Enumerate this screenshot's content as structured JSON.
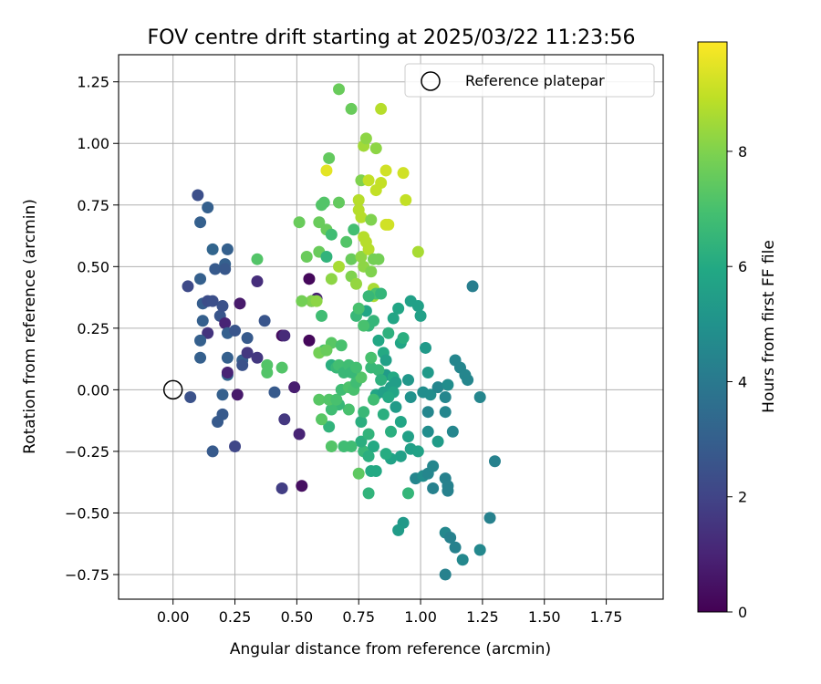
{
  "chart_data": {
    "type": "scatter",
    "title": "FOV centre drift starting at 2025/03/22 11:23:56",
    "xlabel": "Angular distance from reference (arcmin)",
    "ylabel": "Rotation from reference (arcmin)",
    "xlim": [
      -0.22,
      1.98
    ],
    "ylim": [
      -0.85,
      1.36
    ],
    "xticks": [
      "0.00",
      "0.25",
      "0.50",
      "0.75",
      "1.00",
      "1.25",
      "1.50",
      "1.75"
    ],
    "yticks": [
      "−0.75",
      "−0.50",
      "−0.25",
      "0.00",
      "0.25",
      "0.50",
      "0.75",
      "1.00",
      "1.25"
    ],
    "grid": true,
    "legend": {
      "position": "top-right",
      "entries": [
        "Reference platepar"
      ]
    },
    "reference": {
      "x": 0.0,
      "y": 0.0,
      "label": "Reference platepar"
    },
    "colorbar": {
      "label": "Hours from first FF file",
      "range": [
        0,
        9.9
      ],
      "ticks": [
        "0",
        "2",
        "4",
        "6",
        "8"
      ],
      "colormap": "viridis"
    },
    "points": [
      [
        0.1,
        0.79,
        2.4
      ],
      [
        0.14,
        0.74,
        3.0
      ],
      [
        0.11,
        0.68,
        3.0
      ],
      [
        0.16,
        0.57,
        3.2
      ],
      [
        0.22,
        0.57,
        3.0
      ],
      [
        0.17,
        0.49,
        2.8
      ],
      [
        0.21,
        0.51,
        3.0
      ],
      [
        0.21,
        0.49,
        2.7
      ],
      [
        0.11,
        0.45,
        3.0
      ],
      [
        0.06,
        0.42,
        2.2
      ],
      [
        0.12,
        0.35,
        2.9
      ],
      [
        0.14,
        0.36,
        2.3
      ],
      [
        0.16,
        0.36,
        2.4
      ],
      [
        0.19,
        0.3,
        2.6
      ],
      [
        0.2,
        0.34,
        2.5
      ],
      [
        0.12,
        0.28,
        3.0
      ],
      [
        0.14,
        0.23,
        1.5
      ],
      [
        0.11,
        0.2,
        3.0
      ],
      [
        0.21,
        0.27,
        1.0
      ],
      [
        0.22,
        0.23,
        3.0
      ],
      [
        0.25,
        0.24,
        2.6
      ],
      [
        0.27,
        0.35,
        0.7
      ],
      [
        0.34,
        0.44,
        1.3
      ],
      [
        0.37,
        0.28,
        2.6
      ],
      [
        0.11,
        0.13,
        3.0
      ],
      [
        0.22,
        0.13,
        3.0
      ],
      [
        0.28,
        0.12,
        3.0
      ],
      [
        0.3,
        0.15,
        1.6
      ],
      [
        0.34,
        0.13,
        1.6
      ],
      [
        0.3,
        0.21,
        2.8
      ],
      [
        0.22,
        0.06,
        3.2
      ],
      [
        0.22,
        0.07,
        1.0
      ],
      [
        0.28,
        0.1,
        2.5
      ],
      [
        0.07,
        -0.03,
        2.5
      ],
      [
        0.2,
        -0.02,
        3.0
      ],
      [
        0.26,
        -0.02,
        0.7
      ],
      [
        0.41,
        -0.01,
        2.8
      ],
      [
        0.49,
        0.01,
        0.8
      ],
      [
        0.2,
        -0.1,
        2.8
      ],
      [
        0.18,
        -0.13,
        2.8
      ],
      [
        0.16,
        -0.25,
        2.8
      ],
      [
        0.25,
        -0.23,
        2.1
      ],
      [
        0.45,
        -0.12,
        1.6
      ],
      [
        0.51,
        -0.18,
        1.0
      ],
      [
        0.44,
        -0.4,
        1.8
      ],
      [
        0.52,
        -0.39,
        0.4
      ],
      [
        0.44,
        0.22,
        0.4
      ],
      [
        0.45,
        0.22,
        1.2
      ],
      [
        0.55,
        0.2,
        0.2
      ],
      [
        0.55,
        0.45,
        0.2
      ],
      [
        0.56,
        0.36,
        0.2
      ],
      [
        0.58,
        0.37,
        0.9
      ],
      [
        0.34,
        0.53,
        7.2
      ],
      [
        0.38,
        0.07,
        7.2
      ],
      [
        0.38,
        0.1,
        7.2
      ],
      [
        0.44,
        0.09,
        7.2
      ],
      [
        0.51,
        0.68,
        7.6
      ],
      [
        0.54,
        0.54,
        7.6
      ],
      [
        0.59,
        0.68,
        7.6
      ],
      [
        0.59,
        0.56,
        7.6
      ],
      [
        0.6,
        0.75,
        7.2
      ],
      [
        0.61,
        0.76,
        7.2
      ],
      [
        0.63,
        0.94,
        7.5
      ],
      [
        0.67,
        0.76,
        7.5
      ],
      [
        0.67,
        1.22,
        7.6
      ],
      [
        0.72,
        1.14,
        7.6
      ],
      [
        0.62,
        0.65,
        7.6
      ],
      [
        0.64,
        0.63,
        6.8
      ],
      [
        0.64,
        0.45,
        8.2
      ],
      [
        0.67,
        0.5,
        8.6
      ],
      [
        0.7,
        0.6,
        7.2
      ],
      [
        0.72,
        0.53,
        7.6
      ],
      [
        0.72,
        0.46,
        8.0
      ],
      [
        0.73,
        0.65,
        6.9
      ],
      [
        0.74,
        0.43,
        8.3
      ],
      [
        0.75,
        0.77,
        8.8
      ],
      [
        0.75,
        0.73,
        8.8
      ],
      [
        0.76,
        0.7,
        8.8
      ],
      [
        0.76,
        0.85,
        8.0
      ],
      [
        0.76,
        0.54,
        8.2
      ],
      [
        0.77,
        0.5,
        8.2
      ],
      [
        0.77,
        0.62,
        8.8
      ],
      [
        0.78,
        0.6,
        8.8
      ],
      [
        0.79,
        0.57,
        8.8
      ],
      [
        0.77,
        0.99,
        8.5
      ],
      [
        0.78,
        1.02,
        8.2
      ],
      [
        0.82,
        0.98,
        8.2
      ],
      [
        0.79,
        0.85,
        9.0
      ],
      [
        0.82,
        0.81,
        9.0
      ],
      [
        0.84,
        0.84,
        9.0
      ],
      [
        0.8,
        0.69,
        8.0
      ],
      [
        0.81,
        0.53,
        7.8
      ],
      [
        0.83,
        0.53,
        7.8
      ],
      [
        0.8,
        0.48,
        8.0
      ],
      [
        0.81,
        0.41,
        8.6
      ],
      [
        0.81,
        0.38,
        8.6
      ],
      [
        0.82,
        0.39,
        7.0
      ],
      [
        0.79,
        0.38,
        6.6
      ],
      [
        0.84,
        0.39,
        6.5
      ],
      [
        0.84,
        1.14,
        8.8
      ],
      [
        0.86,
        0.89,
        9.2
      ],
      [
        0.87,
        0.67,
        9.2
      ],
      [
        0.86,
        0.67,
        9.2
      ],
      [
        0.93,
        0.88,
        9.2
      ],
      [
        0.94,
        0.77,
        9.0
      ],
      [
        0.99,
        0.56,
        8.6
      ],
      [
        0.62,
        0.89,
        9.5
      ],
      [
        0.78,
        0.32,
        5.8
      ],
      [
        0.79,
        0.26,
        6.5
      ],
      [
        0.81,
        0.28,
        6.5
      ],
      [
        0.83,
        0.2,
        5.9
      ],
      [
        0.85,
        0.15,
        6.0
      ],
      [
        0.89,
        0.29,
        5.8
      ],
      [
        0.91,
        0.33,
        5.8
      ],
      [
        0.92,
        0.19,
        5.8
      ],
      [
        0.93,
        0.21,
        6.2
      ],
      [
        0.96,
        0.36,
        5.6
      ],
      [
        0.99,
        0.34,
        5.6
      ],
      [
        1.0,
        0.3,
        5.6
      ],
      [
        1.02,
        0.17,
        5.3
      ],
      [
        1.03,
        0.07,
        5.3
      ],
      [
        0.86,
        0.12,
        5.6
      ],
      [
        0.86,
        0.06,
        5.4
      ],
      [
        0.88,
        0.01,
        5.5
      ],
      [
        0.89,
        0.05,
        6.0
      ],
      [
        0.9,
        0.03,
        5.5
      ],
      [
        0.83,
        0.08,
        6.6
      ],
      [
        0.84,
        0.04,
        6.3
      ],
      [
        0.82,
        -0.02,
        5.8
      ],
      [
        0.85,
        -0.01,
        5.6
      ],
      [
        0.89,
        -0.01,
        5.8
      ],
      [
        0.9,
        -0.07,
        5.4
      ],
      [
        0.95,
        0.04,
        5.2
      ],
      [
        0.96,
        -0.03,
        5.0
      ],
      [
        1.01,
        -0.01,
        4.8
      ],
      [
        1.04,
        -0.02,
        4.8
      ],
      [
        1.07,
        0.01,
        4.5
      ],
      [
        1.1,
        -0.03,
        4.5
      ],
      [
        1.11,
        0.02,
        4.8
      ],
      [
        1.14,
        0.12,
        4.5
      ],
      [
        1.16,
        0.09,
        4.5
      ],
      [
        1.18,
        0.06,
        4.5
      ],
      [
        1.19,
        0.04,
        4.5
      ],
      [
        1.21,
        0.42,
        4.2
      ],
      [
        1.24,
        -0.03,
        4.5
      ],
      [
        1.03,
        -0.09,
        4.5
      ],
      [
        1.03,
        -0.17,
        4.8
      ],
      [
        1.07,
        -0.21,
        5.4
      ],
      [
        1.1,
        -0.09,
        4.5
      ],
      [
        1.13,
        -0.17,
        4.5
      ],
      [
        0.98,
        -0.36,
        4.5
      ],
      [
        1.01,
        -0.35,
        4.8
      ],
      [
        1.03,
        -0.34,
        4.5
      ],
      [
        1.05,
        -0.31,
        4.5
      ],
      [
        1.05,
        -0.4,
        4.3
      ],
      [
        1.1,
        -0.36,
        4.3
      ],
      [
        1.11,
        -0.39,
        4.3
      ],
      [
        1.11,
        -0.41,
        4.3
      ],
      [
        1.1,
        -0.58,
        4.6
      ],
      [
        1.12,
        -0.6,
        4.3
      ],
      [
        1.14,
        -0.64,
        4.3
      ],
      [
        1.17,
        -0.69,
        4.6
      ],
      [
        1.1,
        -0.75,
        4.3
      ],
      [
        1.24,
        -0.65,
        4.6
      ],
      [
        1.28,
        -0.52,
        4.3
      ],
      [
        1.3,
        -0.29,
        4.3
      ],
      [
        0.93,
        -0.54,
        5.3
      ],
      [
        0.91,
        -0.57,
        5.4
      ],
      [
        0.95,
        -0.42,
        6.5
      ],
      [
        0.92,
        -0.27,
        5.6
      ],
      [
        0.96,
        -0.24,
        5.6
      ],
      [
        0.99,
        -0.25,
        5.7
      ],
      [
        0.95,
        -0.19,
        5.6
      ],
      [
        0.92,
        -0.13,
        5.8
      ],
      [
        0.88,
        -0.28,
        5.7
      ],
      [
        0.86,
        -0.26,
        6.1
      ],
      [
        0.85,
        -0.1,
        6.2
      ],
      [
        0.82,
        -0.33,
        6.0
      ],
      [
        0.8,
        -0.33,
        6.0
      ],
      [
        0.79,
        -0.42,
        6.4
      ],
      [
        0.77,
        -0.25,
        6.6
      ],
      [
        0.76,
        -0.21,
        6.2
      ],
      [
        0.79,
        -0.18,
        6.4
      ],
      [
        0.81,
        -0.23,
        6.0
      ],
      [
        0.76,
        -0.13,
        6.2
      ],
      [
        0.75,
        -0.34,
        7.4
      ],
      [
        0.72,
        -0.23,
        6.8
      ],
      [
        0.71,
        -0.08,
        7.0
      ],
      [
        0.67,
        -0.06,
        6.6
      ],
      [
        0.64,
        -0.08,
        6.8
      ],
      [
        0.63,
        -0.15,
        6.4
      ],
      [
        0.6,
        -0.12,
        7.3
      ],
      [
        0.59,
        -0.04,
        7.3
      ],
      [
        0.63,
        -0.04,
        7.2
      ],
      [
        0.66,
        -0.04,
        7.0
      ],
      [
        0.68,
        0.0,
        6.8
      ],
      [
        0.71,
        0.01,
        7.1
      ],
      [
        0.73,
        0.0,
        7.0
      ],
      [
        0.74,
        0.03,
        6.8
      ],
      [
        0.76,
        0.05,
        7.2
      ],
      [
        0.64,
        0.1,
        6.2
      ],
      [
        0.66,
        0.09,
        6.6
      ],
      [
        0.67,
        0.1,
        6.9
      ],
      [
        0.69,
        0.07,
        6.6
      ],
      [
        0.71,
        0.1,
        6.8
      ],
      [
        0.72,
        0.07,
        6.6
      ],
      [
        0.74,
        0.09,
        6.9
      ],
      [
        0.64,
        0.19,
        7.3
      ],
      [
        0.61,
        0.16,
        7.0
      ],
      [
        0.6,
        0.3,
        6.8
      ],
      [
        0.62,
        0.54,
        6.4
      ],
      [
        0.64,
        -0.23,
        7.2
      ],
      [
        0.68,
        0.18,
        7.0
      ],
      [
        0.74,
        0.3,
        6.6
      ],
      [
        0.75,
        0.33,
        7.0
      ],
      [
        0.77,
        0.26,
        7.0
      ],
      [
        0.8,
        0.09,
        6.6
      ],
      [
        0.8,
        0.13,
        7.0
      ],
      [
        0.77,
        -0.09,
        6.6
      ],
      [
        0.69,
        -0.23,
        6.8
      ],
      [
        0.79,
        -0.27,
        6.2
      ],
      [
        0.81,
        -0.04,
        6.8
      ],
      [
        0.87,
        -0.03,
        6.0
      ],
      [
        0.87,
        0.23,
        6.3
      ],
      [
        0.88,
        -0.17,
        6.2
      ],
      [
        0.56,
        0.36,
        8.0
      ],
      [
        0.58,
        0.36,
        8.2
      ],
      [
        0.52,
        0.36,
        7.8
      ],
      [
        0.59,
        0.15,
        7.8
      ],
      [
        0.62,
        0.16,
        7.6
      ]
    ]
  }
}
